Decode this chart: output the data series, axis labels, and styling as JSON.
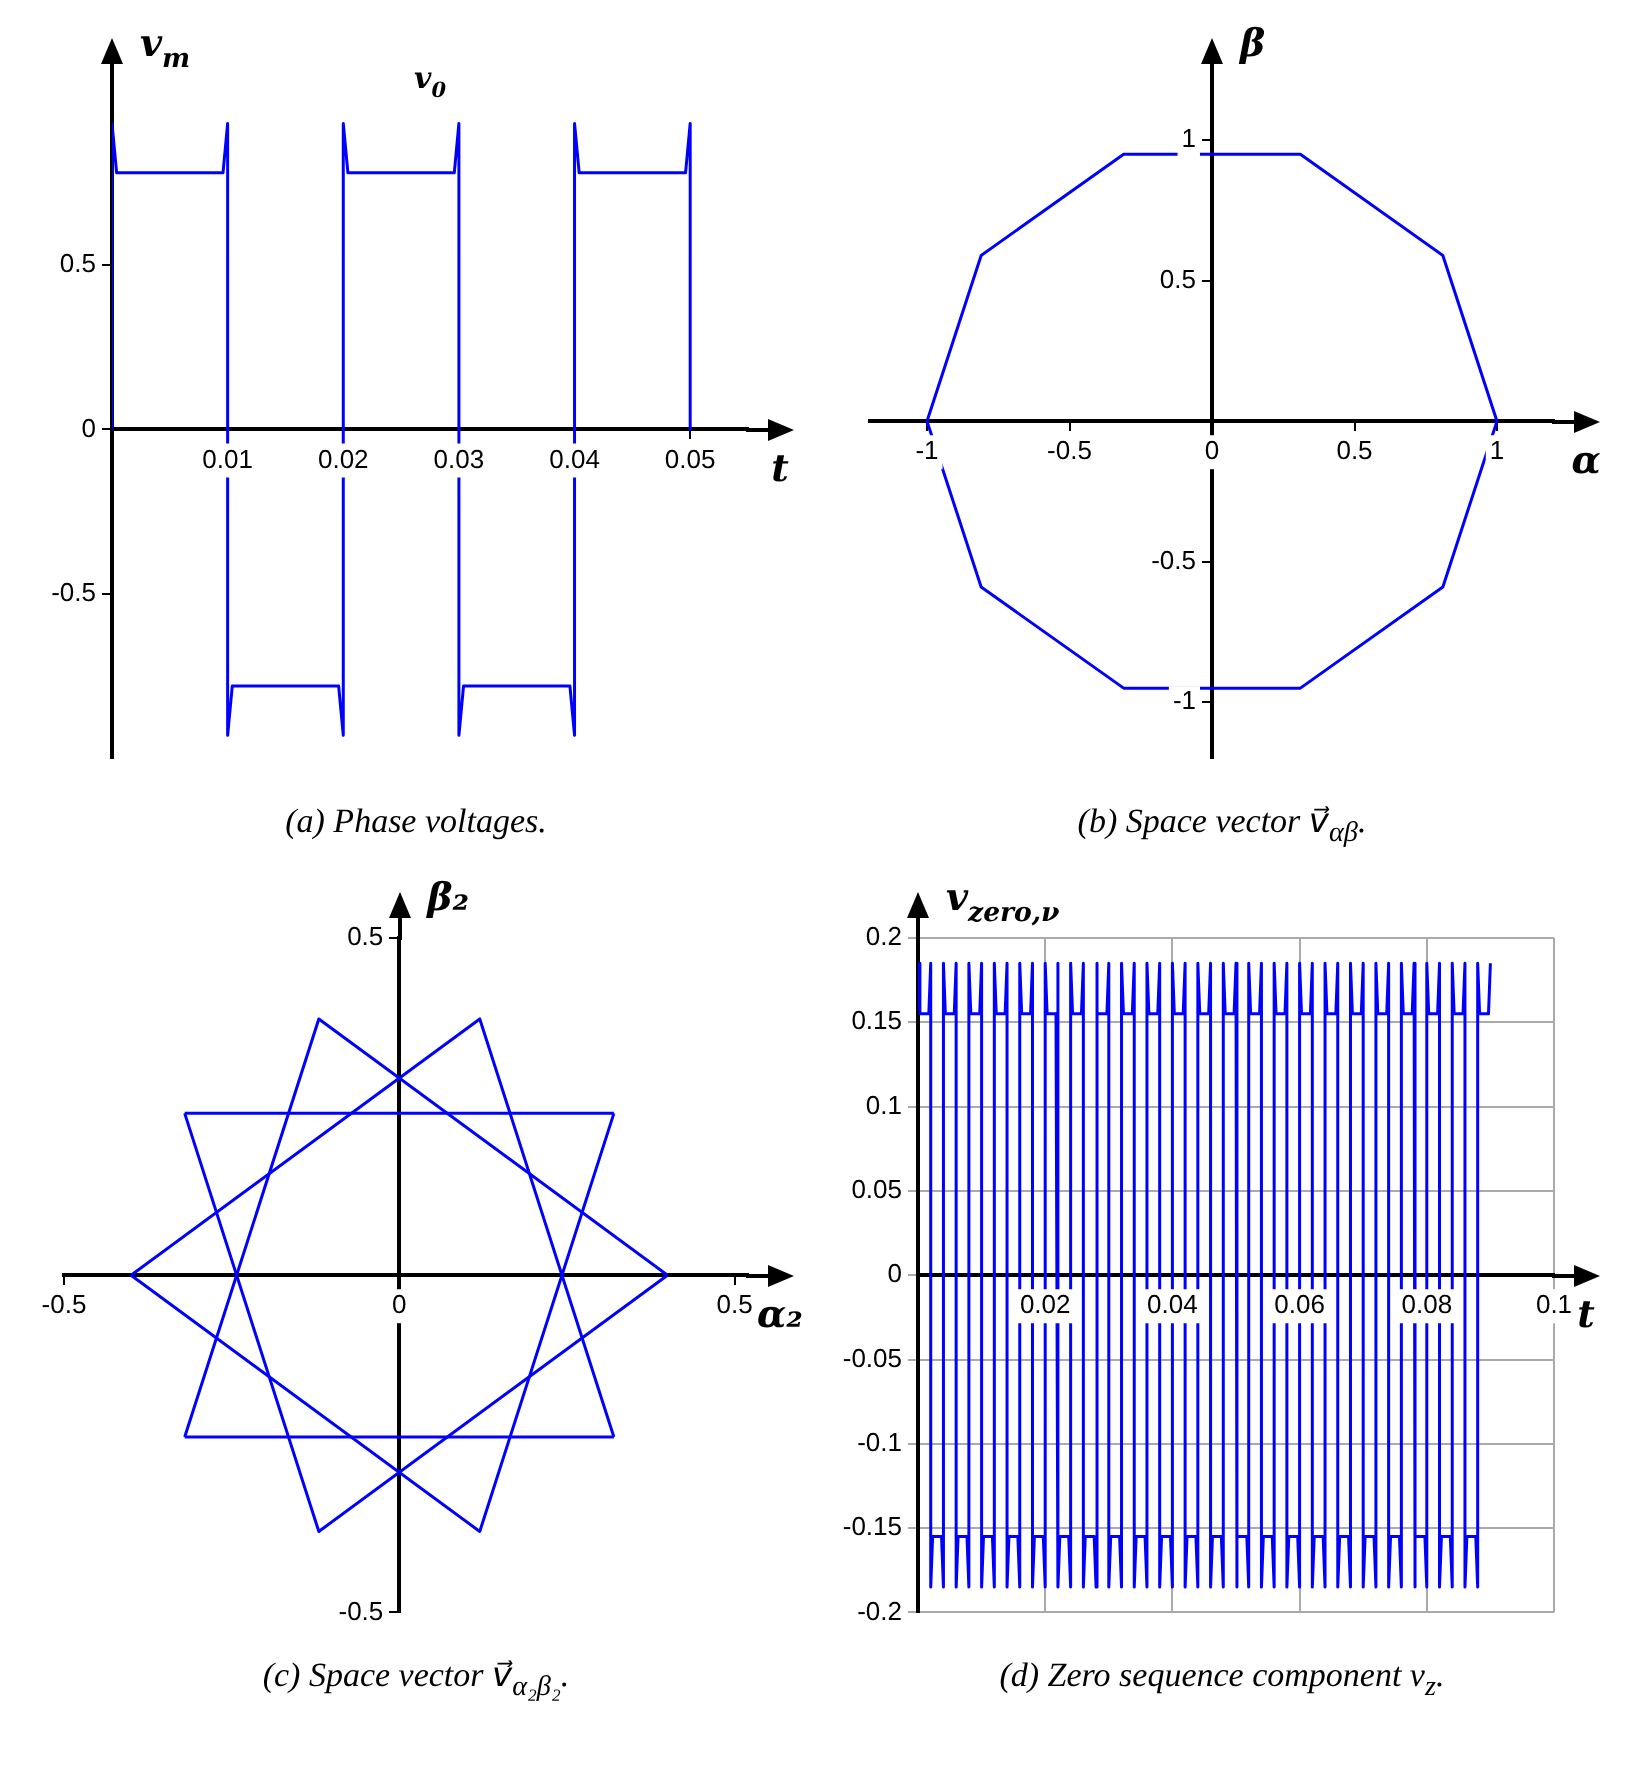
{
  "chart_data": [
    {
      "type": "line",
      "title": "(a) Phase voltages.",
      "xlabel": "t",
      "ylabel": "v$_{m}$",
      "marker": "none",
      "color": "#0000ff",
      "xlim": [
        0,
        0.055
      ],
      "ylim": [
        -1,
        1.05
      ],
      "xticks": [
        0.01,
        0.02,
        0.03,
        0.04,
        0.05
      ],
      "yticks": [
        -0.5,
        0,
        0.5
      ],
      "grid": false,
      "annotations": [
        "v$_{0}$"
      ],
      "x": [
        0,
        0,
        0.0004,
        0.0096,
        0.01,
        0.01,
        0.0104,
        0.0196,
        0.02,
        0.02,
        0.0204,
        0.0296,
        0.03,
        0.03,
        0.0304,
        0.0396,
        0.04,
        0.04,
        0.0404,
        0.0496,
        0.05,
        0.05
      ],
      "values": [
        0,
        0.93,
        0.78,
        0.78,
        0.93,
        -0.93,
        -0.78,
        -0.78,
        -0.93,
        0.93,
        0.78,
        0.78,
        0.93,
        -0.93,
        -0.78,
        -0.78,
        -0.93,
        0.93,
        0.78,
        0.78,
        0.93,
        0
      ]
    },
    {
      "type": "line",
      "title": "(b) Space vector v⃗$_{αβ}$.",
      "xlabel": "α",
      "ylabel": "β",
      "marker": "none",
      "xlim": [
        -1.2,
        1.2
      ],
      "ylim": [
        -1.2,
        1.2
      ],
      "xticks": [
        -1,
        -0.5,
        0,
        0.5,
        1
      ],
      "yticks": [
        -1,
        -0.5,
        0.5,
        1
      ],
      "grid": false,
      "series": [
        {
          "color": "#0000ff",
          "x": [
            -1,
            -0.81,
            -0.31,
            0.31,
            0.81,
            1
          ],
          "values": [
            0,
            0.59,
            0.95,
            0.95,
            0.59,
            0
          ]
        },
        {
          "color": "#0000ff",
          "x": [
            -1,
            -0.81,
            -0.31,
            0.31,
            0.81,
            1
          ],
          "values": [
            0,
            -0.59,
            -0.95,
            -0.95,
            -0.59,
            0
          ]
        }
      ]
    },
    {
      "type": "line",
      "title": "(c) Space vector v⃗$_{α₂β₂}$.",
      "xlabel": "α₂",
      "ylabel": "β₂",
      "marker": "none",
      "xlim": [
        -0.5,
        0.52
      ],
      "ylim": [
        -0.5,
        0.5
      ],
      "xticks": [
        -0.5,
        0,
        0.5
      ],
      "yticks": [
        -0.5,
        0.5
      ],
      "grid": false,
      "series": [
        {
          "color": "#0000ff",
          "x": [
            -0.32,
            -0.12,
            0.4
          ],
          "values": [
            -0.24,
            0.38,
            0
          ]
        },
        {
          "color": "#0000ff",
          "x": [
            -0.32,
            0.32
          ],
          "values": [
            -0.24,
            -0.24
          ]
        },
        {
          "color": "#0000ff",
          "x": [
            -0.4,
            0.12,
            0.32
          ],
          "values": [
            0,
            0.38,
            -0.24
          ]
        },
        {
          "color": "#0000ff",
          "x": [
            -0.4,
            0.12,
            0.32
          ],
          "values": [
            0,
            -0.38,
            0.24
          ]
        },
        {
          "color": "#0000ff",
          "x": [
            -0.32,
            0.32
          ],
          "values": [
            0.24,
            0.24
          ]
        },
        {
          "color": "#0000ff",
          "x": [
            -0.32,
            -0.12,
            0.4
          ],
          "values": [
            0.24,
            -0.38,
            0
          ]
        }
      ]
    },
    {
      "type": "line",
      "title": "(d) Zero sequence component v$_{z}$.",
      "xlabel": "t",
      "ylabel": "v$_{zero,ν}$",
      "marker": "none",
      "color": "#0000ff",
      "xlim": [
        0,
        0.1
      ],
      "ylim": [
        -0.2,
        0.2
      ],
      "xticks": [
        0.02,
        0.04,
        0.06,
        0.08,
        0.1
      ],
      "yticks": [
        -0.2,
        -0.15,
        -0.1,
        -0.05,
        0,
        0.05,
        0.1,
        0.15,
        0.2
      ],
      "grid": true,
      "x": [
        0,
        0.0003,
        0.0017,
        0.002,
        0.002,
        0.0023,
        0.0037,
        0.004,
        0.004,
        0.0043,
        0.0057,
        0.006,
        0.006,
        0.0063,
        0.0077,
        0.008,
        0.008,
        0.0083,
        0.0097,
        0.01,
        0.01,
        0.0103,
        0.0117,
        0.012,
        0.012,
        0.0123,
        0.0137,
        0.014,
        0.014,
        0.0143,
        0.0157,
        0.016,
        0.016,
        0.0163,
        0.0177,
        0.018,
        0.018,
        0.0183,
        0.0197,
        0.02,
        0.02,
        0.0203,
        0.0217,
        0.022,
        0.022,
        0.0223,
        0.0237,
        0.024,
        0.024,
        0.0243,
        0.0257,
        0.026,
        0.026,
        0.0263,
        0.0277,
        0.028,
        0.028,
        0.0283,
        0.0297,
        0.03,
        0.03,
        0.0303,
        0.0317,
        0.032,
        0.032,
        0.0323,
        0.0337,
        0.034,
        0.034,
        0.0343,
        0.0357,
        0.036,
        0.036,
        0.0363,
        0.0377,
        0.038,
        0.038,
        0.0383,
        0.0397,
        0.04,
        0.04,
        0.0403,
        0.0417,
        0.042,
        0.042,
        0.0423,
        0.0437,
        0.044,
        0.044,
        0.0443,
        0.0457,
        0.046,
        0.046,
        0.0463,
        0.0477,
        0.048,
        0.048,
        0.0483,
        0.0497,
        0.05,
        0.05,
        0.0503,
        0.0517,
        0.052,
        0.052,
        0.0523,
        0.0537,
        0.054,
        0.054,
        0.0543,
        0.0557,
        0.056,
        0.056,
        0.0563,
        0.0577,
        0.058,
        0.058,
        0.0583,
        0.0597,
        0.06,
        0.06,
        0.0603,
        0.0617,
        0.062,
        0.062,
        0.0623,
        0.0637,
        0.064,
        0.064,
        0.0643,
        0.0657,
        0.066,
        0.066,
        0.0663,
        0.0677,
        0.068,
        0.068,
        0.0683,
        0.0697,
        0.07,
        0.07,
        0.0703,
        0.0717,
        0.072,
        0.072,
        0.0723,
        0.0737,
        0.074,
        0.074,
        0.0743,
        0.0757,
        0.076,
        0.076,
        0.0763,
        0.0777,
        0.078,
        0.078,
        0.0783,
        0.0797,
        0.08,
        0.08,
        0.0803,
        0.0817,
        0.082,
        0.082,
        0.0823,
        0.0837,
        0.084,
        0.084,
        0.0843,
        0.0857,
        0.086,
        0.086,
        0.0863,
        0.0877,
        0.088,
        0.088,
        0.0883,
        0.0897,
        0.09
      ],
      "values": [
        0.185,
        0.155,
        0.155,
        0.185,
        -0.185,
        -0.155,
        -0.155,
        -0.185,
        0.185,
        0.155,
        0.155,
        0.185,
        -0.185,
        -0.155,
        -0.155,
        -0.185,
        0.185,
        0.155,
        0.155,
        0.185,
        -0.185,
        -0.155,
        -0.155,
        -0.185,
        0.185,
        0.155,
        0.155,
        0.185,
        -0.185,
        -0.155,
        -0.155,
        -0.185,
        0.185,
        0.155,
        0.155,
        0.185,
        -0.185,
        -0.155,
        -0.155,
        -0.185,
        0.185,
        0.155,
        0.155,
        0.185,
        -0.185,
        -0.155,
        -0.155,
        -0.185,
        0.185,
        0.155,
        0.155,
        0.185,
        -0.185,
        -0.155,
        -0.155,
        -0.185,
        0.185,
        0.155,
        0.155,
        0.185,
        -0.185,
        -0.155,
        -0.155,
        -0.185,
        0.185,
        0.155,
        0.155,
        0.185,
        -0.185,
        -0.155,
        -0.155,
        -0.185,
        0.185,
        0.155,
        0.155,
        0.185,
        -0.185,
        -0.155,
        -0.155,
        -0.185,
        0.185,
        0.155,
        0.155,
        0.185,
        -0.185,
        -0.155,
        -0.155,
        -0.185,
        0.185,
        0.155,
        0.155,
        0.185,
        -0.185,
        -0.155,
        -0.155,
        -0.185,
        0.185,
        0.155,
        0.155,
        0.185,
        -0.185,
        -0.155,
        -0.155,
        -0.185,
        0.185,
        0.155,
        0.155,
        0.185,
        -0.185,
        -0.155,
        -0.155,
        -0.185,
        0.185,
        0.155,
        0.155,
        0.185,
        -0.185,
        -0.155,
        -0.155,
        -0.185,
        0.185,
        0.155,
        0.155,
        0.185,
        -0.185,
        -0.155,
        -0.155,
        -0.185,
        0.185,
        0.155,
        0.155,
        0.185,
        -0.185,
        -0.155,
        -0.155,
        -0.185,
        0.185,
        0.155,
        0.155,
        0.185,
        -0.185,
        -0.155,
        -0.155,
        -0.185,
        0.185,
        0.155,
        0.155,
        0.185,
        -0.185,
        -0.155,
        -0.155,
        -0.185,
        0.185,
        0.155,
        0.155,
        0.185,
        -0.185,
        -0.155,
        -0.155,
        -0.185,
        0.185,
        0.155,
        0.155,
        0.185,
        -0.185,
        -0.155,
        -0.155,
        -0.185,
        0.185,
        0.155,
        0.155,
        0.185,
        -0.185,
        -0.155,
        -0.155,
        -0.185,
        0.185,
        0.155,
        0.155,
        0.185
      ]
    }
  ]
}
